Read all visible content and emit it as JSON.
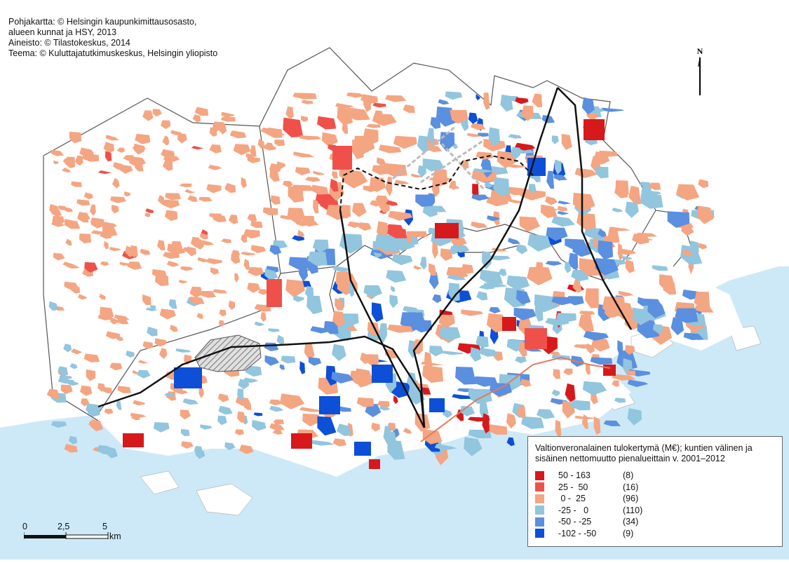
{
  "credits": [
    "Pohjakartta: © Helsingin kaupunkimittausosasto,",
    "alueen kunnat ja HSY, 2013",
    "Aineisto: © Tilastokeskus, 2014",
    "Teema: © Kuluttajatutkimuskeskus, Helsingin yliopisto"
  ],
  "north_label": "N",
  "colors": {
    "sea": "#cde9f7",
    "land": "#ffffff",
    "boundary": "#555555",
    "railway": "#111111",
    "metro": "#e07a5f",
    "excluded_hatch": "#888888"
  },
  "legend": {
    "title_line1": "Valtionveronalainen tulokertymä (M€); kuntien välinen ja",
    "title_line2": "sisäinen nettomuutto pienalueittain v. 2001–2012",
    "classes": [
      {
        "range": "50 - 163",
        "count": "(8)",
        "color": "#d7191c"
      },
      {
        "range": "25 -  50",
        "count": "(16)",
        "color": "#f0504a"
      },
      {
        "range": " 0 -  25",
        "count": "(96)",
        "color": "#f4a582"
      },
      {
        "range": "-25 -   0",
        "count": "(110)",
        "color": "#92c5de"
      },
      {
        "range": "-50 - -25",
        "count": "(34)",
        "color": "#5b8fdf"
      },
      {
        "range": "-102 - -50",
        "count": "(9)",
        "color": "#0d4fd6"
      }
    ]
  },
  "scale": {
    "ticks": [
      "0",
      "2,5",
      "5"
    ],
    "unit": "km"
  }
}
